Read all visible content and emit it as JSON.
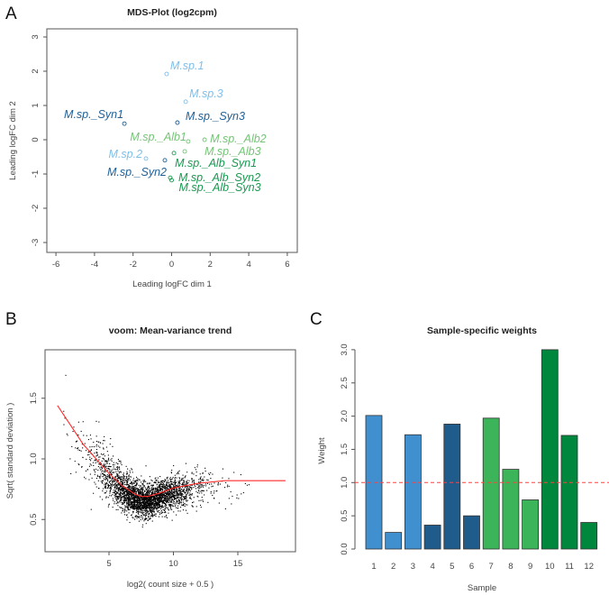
{
  "panels": {
    "a": "A",
    "b": "B",
    "c": "C"
  },
  "chart_data": [
    {
      "type": "scatter",
      "title": "MDS-Plot (log2cpm)",
      "xlabel": "Leading logFC dim 1",
      "ylabel": "Leading logFC dim 2",
      "xlim": [
        -6.5,
        6.5
      ],
      "ylim": [
        -3.3,
        3.3
      ],
      "xticks": [
        -6,
        -4,
        -2,
        0,
        2,
        4,
        6
      ],
      "yticks": [
        -3,
        -2,
        -1,
        0,
        1,
        2,
        3
      ],
      "points": [
        {
          "label": "M.sp.1",
          "x": -0.26,
          "y": 1.92,
          "color": "#7fbfea"
        },
        {
          "label": "M.sp.3",
          "x": 0.73,
          "y": 1.11,
          "color": "#7fbfea"
        },
        {
          "label": "M.sp._Syn1",
          "x": -2.45,
          "y": 0.47,
          "color": "#1f5f96"
        },
        {
          "label": "M.sp._Syn3",
          "x": 0.3,
          "y": 0.5,
          "color": "#1f5f96"
        },
        {
          "label": "M.sp._Alb1",
          "x": 0.86,
          "y": -0.05,
          "color": "#74c476"
        },
        {
          "label": "M.sp._Alb2",
          "x": 1.71,
          "y": 0.0,
          "color": "#74c476"
        },
        {
          "label": "M.sp._Alb3",
          "x": 0.68,
          "y": -0.34,
          "color": "#74c476"
        },
        {
          "label": "M.sp.2",
          "x": -1.33,
          "y": -0.55,
          "color": "#7fbfea"
        },
        {
          "label": "M.sp._Syn2",
          "x": -0.35,
          "y": -0.6,
          "color": "#1f5f96"
        },
        {
          "label": "M.sp._Alb_Syn1",
          "x": 0.12,
          "y": -0.39,
          "color": "#1a9850"
        },
        {
          "label": "M.sp._Alb_Syn2",
          "x": -0.07,
          "y": -1.11,
          "color": "#1a9850"
        },
        {
          "label": "M.sp._Alb_Syn3",
          "x": 0.0,
          "y": -1.18,
          "color": "#1a9850"
        }
      ]
    },
    {
      "type": "scatter",
      "title": "voom: Mean-variance trend",
      "xlabel": "log2( count size + 0.5 )",
      "ylabel": "Sqrt( standard deviation )",
      "xlim": [
        0,
        19.4
      ],
      "ylim": [
        0.27,
        1.93
      ],
      "xticks": [
        5,
        10,
        15
      ],
      "yticks": [
        0.5,
        1.0,
        1.5
      ],
      "ytick_labels": [
        "0.5",
        "1.0",
        "1.5"
      ],
      "n_points_approx": 3200,
      "point_color": "#000000",
      "trend": {
        "color": "#ff2a2a",
        "x": [
          1,
          2,
          3,
          4,
          5,
          6,
          7,
          7.5,
          8,
          9,
          10,
          11,
          12,
          13,
          14,
          15,
          18.7
        ],
        "y": [
          1.44,
          1.28,
          1.12,
          1.0,
          0.88,
          0.78,
          0.71,
          0.69,
          0.69,
          0.72,
          0.76,
          0.78,
          0.8,
          0.81,
          0.82,
          0.82,
          0.82
        ]
      }
    },
    {
      "type": "bar",
      "title": "Sample-specific weights",
      "xlabel": "Sample",
      "ylabel": "Weight",
      "ylim": [
        0,
        3.0
      ],
      "yticks": [
        0,
        0.5,
        1.0,
        1.5,
        2.0,
        2.5,
        3.0
      ],
      "ytick_labels": [
        "0.0",
        "0.5",
        "1.0",
        "1.5",
        "2.0",
        "2.5",
        "3.0"
      ],
      "categories": [
        "1",
        "2",
        "3",
        "4",
        "5",
        "6",
        "7",
        "8",
        "9",
        "10",
        "11",
        "12"
      ],
      "values": [
        2.01,
        0.25,
        1.72,
        0.36,
        1.88,
        0.5,
        1.97,
        1.2,
        0.74,
        3.0,
        1.71,
        0.4
      ],
      "colors": [
        "#4090d0",
        "#4090d0",
        "#4090d0",
        "#1f5c8c",
        "#1f5c8c",
        "#1f5c8c",
        "#3cb45a",
        "#3cb45a",
        "#3cb45a",
        "#00873e",
        "#00873e",
        "#00873e"
      ],
      "reference_line": {
        "y": 1.0,
        "color": "#ff4040",
        "style": "dashed"
      }
    }
  ]
}
